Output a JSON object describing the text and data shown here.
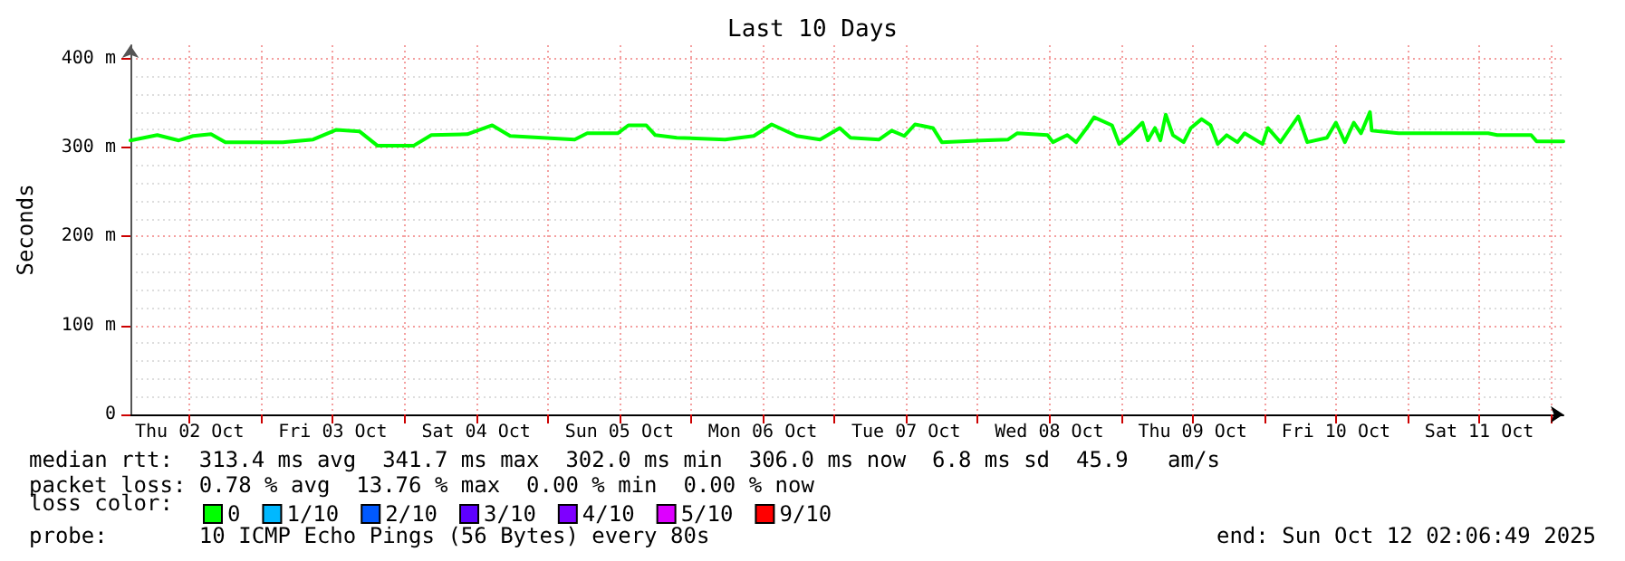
{
  "chart_data": {
    "type": "line",
    "title": "Last 10 Days",
    "ylabel": "Seconds",
    "xlim": [
      "2025-10-02T02:06",
      "2025-10-12T02:06"
    ],
    "xticks": [
      {
        "value": "2025-10-02T12:00",
        "label": "Thu 02 Oct"
      },
      {
        "value": "2025-10-03T00:00",
        "label": null
      },
      {
        "value": "2025-10-03T12:00",
        "label": "Fri 03 Oct"
      },
      {
        "value": "2025-10-04T00:00",
        "label": null
      },
      {
        "value": "2025-10-04T12:00",
        "label": "Sat 04 Oct"
      },
      {
        "value": "2025-10-05T00:00",
        "label": null
      },
      {
        "value": "2025-10-05T12:00",
        "label": "Sun 05 Oct"
      },
      {
        "value": "2025-10-06T00:00",
        "label": null
      },
      {
        "value": "2025-10-06T12:00",
        "label": "Mon 06 Oct"
      },
      {
        "value": "2025-10-07T00:00",
        "label": null
      },
      {
        "value": "2025-10-07T12:00",
        "label": "Tue 07 Oct"
      },
      {
        "value": "2025-10-08T00:00",
        "label": null
      },
      {
        "value": "2025-10-08T12:00",
        "label": "Wed 08 Oct"
      },
      {
        "value": "2025-10-09T00:00",
        "label": null
      },
      {
        "value": "2025-10-09T12:00",
        "label": "Thu 09 Oct"
      },
      {
        "value": "2025-10-10T00:00",
        "label": null
      },
      {
        "value": "2025-10-10T12:00",
        "label": "Fri 10 Oct"
      },
      {
        "value": "2025-10-11T00:00",
        "label": null
      },
      {
        "value": "2025-10-11T12:00",
        "label": "Sat 11 Oct"
      },
      {
        "value": "2025-10-12T00:00",
        "label": null
      }
    ],
    "ylim": [
      0,
      415
    ],
    "yticks": [
      0,
      {
        "value": 100,
        "label": "100 m"
      },
      {
        "value": 200,
        "label": "200 m"
      },
      {
        "value": 300,
        "label": "300 m"
      },
      {
        "value": 400,
        "label": "400 m"
      }
    ],
    "grid": true,
    "legend": "bottom",
    "legend_title": "loss color:",
    "series": [
      {
        "name": "0",
        "color": "#00ff00",
        "x": [
          "2025-10-02T02:06",
          "2025-10-02T06:36",
          "2025-10-02T10:12",
          "2025-10-02T12:36",
          "2025-10-02T15:36",
          "2025-10-02T18:00",
          "2025-10-03T03:36",
          "2025-10-03T08:42",
          "2025-10-03T12:36",
          "2025-10-03T16:30",
          "2025-10-03T19:30",
          "2025-10-04T01:30",
          "2025-10-04T04:30",
          "2025-10-04T10:30",
          "2025-10-04T14:42",
          "2025-10-04T17:42",
          "2025-10-05T04:30",
          "2025-10-05T06:36",
          "2025-10-05T11:42",
          "2025-10-05T13:30",
          "2025-10-05T16:30",
          "2025-10-05T18:00",
          "2025-10-05T21:36",
          "2025-10-06T05:42",
          "2025-10-06T10:30",
          "2025-10-06T13:30",
          "2025-10-06T17:42",
          "2025-10-06T21:36",
          "2025-10-07T00:54",
          "2025-10-07T02:42",
          "2025-10-07T07:30",
          "2025-10-07T09:36",
          "2025-10-07T11:42",
          "2025-10-07T13:30",
          "2025-10-07T16:30",
          "2025-10-07T18:00",
          "2025-10-08T00:36",
          "2025-10-08T05:06",
          "2025-10-08T06:36",
          "2025-10-08T11:42",
          "2025-10-08T12:36",
          "2025-10-08T15:00",
          "2025-10-08T16:30",
          "2025-10-08T18:36",
          "2025-10-08T19:30",
          "2025-10-08T22:30",
          "2025-10-08T23:42",
          "2025-10-09T01:30",
          "2025-10-09T03:36",
          "2025-10-09T04:30",
          "2025-10-09T05:42",
          "2025-10-09T06:36",
          "2025-10-09T07:30",
          "2025-10-09T08:42",
          "2025-10-09T10:30",
          "2025-10-09T11:42",
          "2025-10-09T13:30",
          "2025-10-09T15:00",
          "2025-10-09T16:12",
          "2025-10-09T17:42",
          "2025-10-09T19:30",
          "2025-10-09T20:42",
          "2025-10-09T23:42",
          "2025-10-10T00:36",
          "2025-10-10T02:42",
          "2025-10-10T05:42",
          "2025-10-10T07:12",
          "2025-10-10T10:30",
          "2025-10-10T12:00",
          "2025-10-10T13:30",
          "2025-10-10T15:00",
          "2025-10-10T16:12",
          "2025-10-10T17:42",
          "2025-10-10T18:00",
          "2025-10-10T22:30",
          "2025-10-11T13:30",
          "2025-10-11T15:00",
          "2025-10-11T20:42",
          "2025-10-11T21:36",
          "2025-10-12T02:06"
        ],
        "values": [
          308,
          314,
          308,
          313,
          315,
          306,
          306,
          309,
          320,
          318,
          302,
          302,
          314,
          315,
          325,
          313,
          309,
          316,
          316,
          325,
          325,
          314,
          311,
          309,
          313,
          326,
          313,
          309,
          322,
          311,
          309,
          319,
          313,
          326,
          322,
          306,
          308,
          309,
          316,
          314,
          306,
          314,
          306,
          325,
          334,
          325,
          304,
          314,
          328,
          308,
          322,
          308,
          337,
          314,
          306,
          322,
          332,
          325,
          304,
          314,
          306,
          316,
          304,
          322,
          306,
          335,
          306,
          311,
          328,
          306,
          328,
          316,
          340,
          319,
          316,
          316,
          314,
          314,
          307,
          307
        ]
      },
      {
        "name": "1/10",
        "color": "#00b8ff"
      },
      {
        "name": "2/10",
        "color": "#0059ff"
      },
      {
        "name": "3/10",
        "color": "#5e00ff"
      },
      {
        "name": "4/10",
        "color": "#7e00ff"
      },
      {
        "name": "5/10",
        "color": "#dd00ff"
      },
      {
        "name": "9/10",
        "color": "#ff0000"
      }
    ],
    "annotations": [
      "median rtt:  313.4 ms avg  341.7 ms max  302.0 ms min  306.0 ms now  6.8 ms sd  45.9   am/s",
      "packet loss: 0.78 % avg  13.76 % max  0.00 % min  0.00 % now",
      "probe:       10 ICMP Echo Pings (56 Bytes) every 80s",
      "end: Sun Oct 12 02:06:49 2025"
    ]
  }
}
